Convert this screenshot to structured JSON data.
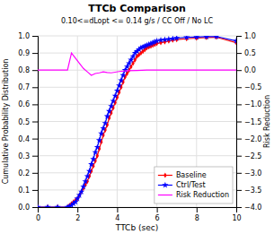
{
  "chart_data": {
    "type": "line",
    "title": "TTCb Comparison",
    "subtitle": "0.10<=dLopt <= 0.14 g/s / CC Off / No LC",
    "x_label": "TTCb (sec)",
    "y_label": "Cumulative Probability Distribution",
    "y2_label": "Risk Reduction",
    "xlim": [
      0.0,
      10.0
    ],
    "xticks": [
      0,
      2,
      4,
      6,
      8,
      10
    ],
    "ylim": [
      0.0,
      1.0
    ],
    "yticks": [
      {
        "value": 0,
        "label": "0.0"
      },
      0.1,
      0.2,
      0.3,
      0.4,
      0.5,
      0.6,
      0.7,
      0.8,
      0.9,
      {
        "value": 1,
        "label": "1.0"
      }
    ],
    "y2lim": [
      -4.0,
      1.0
    ],
    "y2ticks": [
      {
        "value": -4,
        "label": "−4.0"
      },
      {
        "value": -3.5,
        "label": "−3.5"
      },
      {
        "value": -3,
        "label": "−3.0"
      },
      {
        "value": -2.5,
        "label": "−2.5"
      },
      {
        "value": -2,
        "label": "−2.0"
      },
      {
        "value": -1.5,
        "label": "−1.5"
      },
      {
        "value": -1,
        "label": "−1.0"
      },
      {
        "value": -0.5,
        "label": "−0.5"
      },
      {
        "value": 0,
        "label": "0.0"
      },
      0.5,
      {
        "value": 1,
        "label": "1.0"
      }
    ],
    "grid": true,
    "legend": "lower right",
    "series": [
      {
        "name": "Baseline",
        "color": "#ff0000",
        "marker": "diamond",
        "x": [
          0.0,
          0.5,
          1.0,
          1.5,
          1.6,
          1.7,
          1.8,
          1.9,
          2.0,
          2.1,
          2.2,
          2.3,
          2.4,
          2.5,
          2.6,
          2.7,
          2.8,
          2.9,
          3.0,
          3.1,
          3.2,
          3.3,
          3.4,
          3.5,
          3.6,
          3.7,
          3.8,
          3.9,
          4.0,
          4.1,
          4.2,
          4.3,
          4.4,
          4.5,
          4.6,
          4.7,
          4.8,
          4.9,
          5.0,
          5.1,
          5.2,
          5.3,
          5.4,
          5.5,
          5.6,
          5.7,
          5.8,
          5.9,
          6.0,
          6.2,
          6.4,
          6.6,
          6.8,
          7.0,
          7.5,
          8.0,
          8.5,
          9.0,
          10.0
        ],
        "values": [
          0.0,
          0.0,
          0.0,
          0.0,
          0.01,
          0.02,
          0.03,
          0.04,
          0.05,
          0.07,
          0.09,
          0.11,
          0.13,
          0.15,
          0.18,
          0.21,
          0.24,
          0.27,
          0.3,
          0.34,
          0.38,
          0.42,
          0.45,
          0.48,
          0.52,
          0.55,
          0.58,
          0.61,
          0.64,
          0.67,
          0.7,
          0.73,
          0.76,
          0.78,
          0.8,
          0.82,
          0.84,
          0.86,
          0.88,
          0.89,
          0.9,
          0.91,
          0.92,
          0.93,
          0.935,
          0.94,
          0.945,
          0.95,
          0.955,
          0.96,
          0.965,
          0.97,
          0.975,
          0.978,
          0.983,
          0.987,
          0.99,
          0.992,
          0.96
        ]
      },
      {
        "name": "Ctrl/Test",
        "color": "#0000ff",
        "marker": "star",
        "x": [
          0.0,
          0.5,
          1.0,
          1.5,
          1.6,
          1.7,
          1.8,
          1.9,
          2.0,
          2.1,
          2.2,
          2.3,
          2.4,
          2.5,
          2.6,
          2.7,
          2.8,
          2.9,
          3.0,
          3.1,
          3.2,
          3.3,
          3.4,
          3.5,
          3.6,
          3.7,
          3.8,
          3.9,
          4.0,
          4.1,
          4.2,
          4.3,
          4.4,
          4.5,
          4.6,
          4.7,
          4.8,
          4.9,
          5.0,
          5.1,
          5.2,
          5.3,
          5.4,
          5.5,
          5.6,
          5.7,
          5.8,
          5.9,
          6.0,
          6.2,
          6.4,
          6.6,
          6.8,
          7.0,
          7.5,
          8.0,
          8.5,
          9.0,
          10.0
        ],
        "values": [
          0.0,
          0.0,
          0.0,
          0.0,
          0.005,
          0.01,
          0.02,
          0.03,
          0.05,
          0.07,
          0.09,
          0.12,
          0.15,
          0.18,
          0.21,
          0.25,
          0.28,
          0.32,
          0.35,
          0.39,
          0.43,
          0.46,
          0.49,
          0.53,
          0.56,
          0.59,
          0.62,
          0.65,
          0.68,
          0.71,
          0.74,
          0.77,
          0.8,
          0.82,
          0.84,
          0.86,
          0.88,
          0.9,
          0.91,
          0.92,
          0.93,
          0.935,
          0.94,
          0.945,
          0.95,
          0.955,
          0.96,
          0.965,
          0.97,
          0.975,
          0.978,
          0.981,
          0.984,
          0.987,
          0.991,
          0.993,
          0.995,
          0.996,
          0.97
        ]
      },
      {
        "name": "Risk Reduction",
        "color": "#ff00ff",
        "axis": "y2",
        "x": [
          0.0,
          0.5,
          1.0,
          1.5,
          1.7,
          1.9,
          2.1,
          2.3,
          2.5,
          2.7,
          2.9,
          3.1,
          3.3,
          3.5,
          3.7,
          3.9,
          4.1,
          4.5,
          5.0,
          5.5,
          6.0,
          6.5,
          7.0,
          7.5,
          8.0,
          8.5,
          9.0,
          9.5,
          10.0
        ],
        "values": [
          0.0,
          0.0,
          0.0,
          0.0,
          0.5,
          0.35,
          0.2,
          0.05,
          -0.05,
          -0.15,
          -0.1,
          -0.08,
          -0.05,
          -0.07,
          -0.08,
          -0.06,
          -0.04,
          -0.02,
          -0.01,
          0.0,
          0.0,
          0.0,
          0.0,
          0.0,
          0.0,
          0.0,
          0.0,
          0.0,
          0.0
        ]
      }
    ]
  }
}
